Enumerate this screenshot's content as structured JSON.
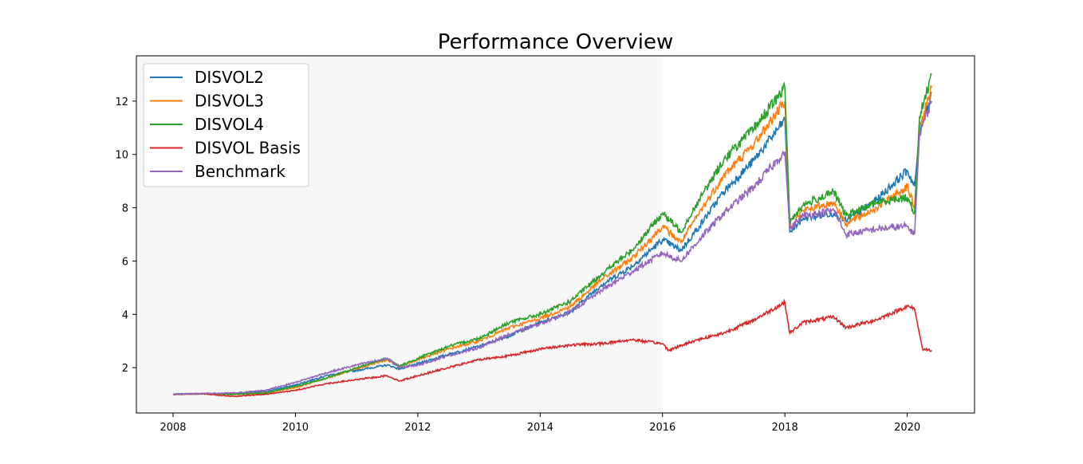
{
  "chart_data": {
    "type": "line",
    "title": "Performance Overview",
    "xlabel": "",
    "ylabel": "",
    "xlim": [
      2007.4,
      2021.1
    ],
    "ylim": [
      0.3,
      13.7
    ],
    "x_ticks": [
      "2008",
      "2010",
      "2012",
      "2014",
      "2016",
      "2018",
      "2020"
    ],
    "y_ticks": [
      "2",
      "4",
      "6",
      "8",
      "10",
      "12"
    ],
    "shaded_region": {
      "from": 2007.4,
      "to": 2016.0,
      "color": "#f7f7f7"
    },
    "grid": false,
    "legend_position": "top-left",
    "series": [
      {
        "name": "DISVOL2",
        "color": "#1f77b4",
        "points": [
          [
            2008.0,
            1.0
          ],
          [
            2008.5,
            1.03
          ],
          [
            2009.0,
            1.02
          ],
          [
            2009.5,
            1.1
          ],
          [
            2010.0,
            1.35
          ],
          [
            2010.5,
            1.7
          ],
          [
            2011.0,
            1.9
          ],
          [
            2011.5,
            2.1
          ],
          [
            2011.7,
            1.95
          ],
          [
            2012.0,
            2.15
          ],
          [
            2012.5,
            2.5
          ],
          [
            2013.0,
            2.8
          ],
          [
            2013.5,
            3.2
          ],
          [
            2014.0,
            3.7
          ],
          [
            2014.5,
            4.1
          ],
          [
            2015.0,
            5.1
          ],
          [
            2015.5,
            5.8
          ],
          [
            2016.0,
            6.8
          ],
          [
            2016.3,
            6.4
          ],
          [
            2016.6,
            7.3
          ],
          [
            2017.0,
            8.6
          ],
          [
            2017.5,
            9.8
          ],
          [
            2018.0,
            11.3
          ],
          [
            2018.08,
            7.1
          ],
          [
            2018.3,
            7.6
          ],
          [
            2018.8,
            7.8
          ],
          [
            2019.0,
            7.5
          ],
          [
            2019.5,
            8.3
          ],
          [
            2020.0,
            9.4
          ],
          [
            2020.12,
            8.8
          ],
          [
            2020.2,
            10.8
          ],
          [
            2020.4,
            12.3
          ]
        ]
      },
      {
        "name": "DISVOL3",
        "color": "#ff7f0e",
        "points": [
          [
            2008.0,
            1.0
          ],
          [
            2008.5,
            1.02
          ],
          [
            2009.0,
            1.0
          ],
          [
            2009.5,
            1.05
          ],
          [
            2010.0,
            1.25
          ],
          [
            2010.5,
            1.6
          ],
          [
            2011.0,
            1.95
          ],
          [
            2011.5,
            2.3
          ],
          [
            2011.7,
            2.05
          ],
          [
            2012.0,
            2.3
          ],
          [
            2012.5,
            2.7
          ],
          [
            2013.0,
            3.0
          ],
          [
            2013.5,
            3.5
          ],
          [
            2014.0,
            3.85
          ],
          [
            2014.5,
            4.3
          ],
          [
            2015.0,
            5.3
          ],
          [
            2015.5,
            6.1
          ],
          [
            2016.0,
            7.3
          ],
          [
            2016.3,
            6.7
          ],
          [
            2016.6,
            7.8
          ],
          [
            2017.0,
            9.2
          ],
          [
            2017.5,
            10.4
          ],
          [
            2018.0,
            12.0
          ],
          [
            2018.08,
            7.3
          ],
          [
            2018.3,
            7.9
          ],
          [
            2018.8,
            8.2
          ],
          [
            2019.0,
            7.4
          ],
          [
            2019.5,
            8.0
          ],
          [
            2020.0,
            8.8
          ],
          [
            2020.12,
            8.0
          ],
          [
            2020.2,
            11.0
          ],
          [
            2020.4,
            12.5
          ]
        ]
      },
      {
        "name": "DISVOL4",
        "color": "#2ca02c",
        "points": [
          [
            2008.0,
            1.0
          ],
          [
            2008.5,
            1.02
          ],
          [
            2009.0,
            1.0
          ],
          [
            2009.5,
            1.05
          ],
          [
            2010.0,
            1.3
          ],
          [
            2010.5,
            1.6
          ],
          [
            2011.0,
            2.0
          ],
          [
            2011.5,
            2.35
          ],
          [
            2011.7,
            2.05
          ],
          [
            2012.0,
            2.35
          ],
          [
            2012.5,
            2.8
          ],
          [
            2013.0,
            3.1
          ],
          [
            2013.5,
            3.7
          ],
          [
            2014.0,
            4.0
          ],
          [
            2014.5,
            4.5
          ],
          [
            2015.0,
            5.5
          ],
          [
            2015.5,
            6.4
          ],
          [
            2016.0,
            7.8
          ],
          [
            2016.3,
            7.1
          ],
          [
            2016.6,
            8.3
          ],
          [
            2017.0,
            9.8
          ],
          [
            2017.5,
            11.0
          ],
          [
            2018.0,
            12.5
          ],
          [
            2018.08,
            7.5
          ],
          [
            2018.3,
            8.1
          ],
          [
            2018.8,
            8.6
          ],
          [
            2019.0,
            7.7
          ],
          [
            2019.5,
            8.2
          ],
          [
            2020.0,
            8.4
          ],
          [
            2020.12,
            7.8
          ],
          [
            2020.2,
            11.4
          ],
          [
            2020.4,
            13.0
          ]
        ]
      },
      {
        "name": "DISVOL Basis",
        "color": "#d62728",
        "points": [
          [
            2008.0,
            1.0
          ],
          [
            2008.5,
            1.02
          ],
          [
            2009.0,
            0.92
          ],
          [
            2009.5,
            1.0
          ],
          [
            2010.0,
            1.15
          ],
          [
            2010.5,
            1.4
          ],
          [
            2011.0,
            1.55
          ],
          [
            2011.5,
            1.7
          ],
          [
            2011.7,
            1.5
          ],
          [
            2012.0,
            1.7
          ],
          [
            2012.5,
            2.0
          ],
          [
            2013.0,
            2.3
          ],
          [
            2013.5,
            2.45
          ],
          [
            2014.0,
            2.7
          ],
          [
            2014.5,
            2.85
          ],
          [
            2015.0,
            2.9
          ],
          [
            2015.5,
            3.05
          ],
          [
            2016.0,
            2.9
          ],
          [
            2016.1,
            2.65
          ],
          [
            2016.5,
            3.0
          ],
          [
            2017.0,
            3.3
          ],
          [
            2017.5,
            3.8
          ],
          [
            2018.0,
            4.45
          ],
          [
            2018.08,
            3.3
          ],
          [
            2018.3,
            3.7
          ],
          [
            2018.8,
            3.9
          ],
          [
            2019.0,
            3.5
          ],
          [
            2019.5,
            3.8
          ],
          [
            2020.0,
            4.3
          ],
          [
            2020.12,
            4.2
          ],
          [
            2020.25,
            2.7
          ],
          [
            2020.4,
            2.65
          ]
        ]
      },
      {
        "name": "Benchmark",
        "color": "#9467bd",
        "points": [
          [
            2008.0,
            1.0
          ],
          [
            2008.5,
            1.03
          ],
          [
            2009.0,
            1.05
          ],
          [
            2009.5,
            1.15
          ],
          [
            2010.0,
            1.45
          ],
          [
            2010.5,
            1.8
          ],
          [
            2011.0,
            2.1
          ],
          [
            2011.5,
            2.35
          ],
          [
            2011.7,
            2.0
          ],
          [
            2012.0,
            2.1
          ],
          [
            2012.5,
            2.45
          ],
          [
            2013.0,
            2.75
          ],
          [
            2013.5,
            3.25
          ],
          [
            2014.0,
            3.65
          ],
          [
            2014.5,
            4.1
          ],
          [
            2015.0,
            4.9
          ],
          [
            2015.5,
            5.6
          ],
          [
            2016.0,
            6.3
          ],
          [
            2016.3,
            6.0
          ],
          [
            2016.6,
            6.8
          ],
          [
            2017.0,
            7.8
          ],
          [
            2017.5,
            8.8
          ],
          [
            2018.0,
            10.1
          ],
          [
            2018.08,
            7.2
          ],
          [
            2018.3,
            7.7
          ],
          [
            2018.8,
            7.9
          ],
          [
            2019.0,
            7.0
          ],
          [
            2019.5,
            7.2
          ],
          [
            2020.0,
            7.3
          ],
          [
            2020.12,
            7.0
          ],
          [
            2020.2,
            10.8
          ],
          [
            2020.4,
            12.0
          ]
        ]
      }
    ]
  }
}
